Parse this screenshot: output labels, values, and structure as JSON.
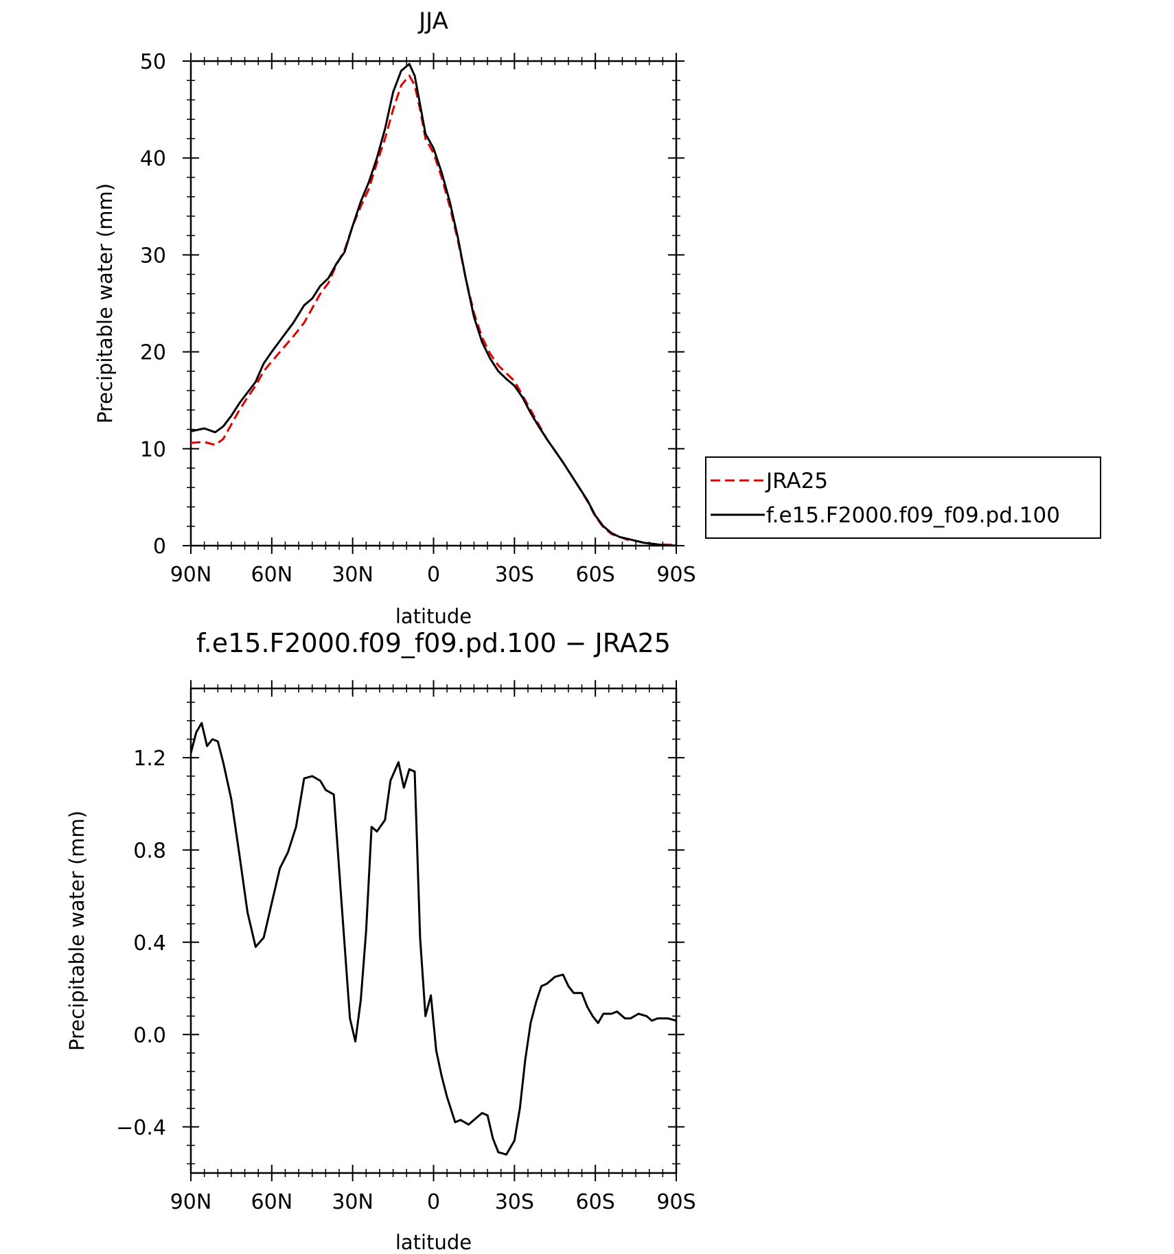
{
  "chart_data": [
    {
      "type": "line",
      "title": "JJA",
      "xlabel": "latitude",
      "ylabel": "Precipitable water (mm)",
      "xlim": [
        90,
        -90
      ],
      "ylim": [
        0,
        50
      ],
      "x_ticks": [
        90,
        60,
        30,
        0,
        -30,
        -60,
        -90
      ],
      "x_tick_labels": [
        "90N",
        "60N",
        "30N",
        "0",
        "30S",
        "60S",
        "90S"
      ],
      "y_ticks": [
        0,
        10,
        20,
        30,
        40,
        50
      ],
      "y_tick_labels": [
        "0",
        "10",
        "20",
        "30",
        "40",
        "50"
      ],
      "legend": {
        "position": "right",
        "entries": [
          "JRA25",
          "f.e15.F2000.f09_f09.pd.100"
        ]
      },
      "series": [
        {
          "name": "JRA25",
          "color": "#e00000",
          "dash": true,
          "x": [
            90,
            85,
            81,
            78,
            75,
            72,
            69,
            66,
            63,
            60,
            56,
            52,
            48,
            45,
            42,
            39,
            36,
            33,
            30,
            27,
            24,
            21,
            18,
            15,
            12,
            9,
            7,
            5,
            3,
            0,
            -3,
            -6,
            -9,
            -12,
            -15,
            -18,
            -21,
            -24,
            -27,
            -30,
            -33,
            -36,
            -39,
            -42,
            -45,
            -48,
            -51,
            -54,
            -57,
            -60,
            -63,
            -66,
            -69,
            -72,
            -75,
            -78,
            -81,
            -84,
            -87,
            -90
          ],
          "y": [
            10.6,
            10.7,
            10.4,
            11.0,
            12.5,
            14.0,
            15.3,
            16.5,
            18.0,
            19.0,
            20.3,
            21.6,
            23.0,
            24.5,
            26.0,
            27.1,
            29.0,
            30.5,
            33.0,
            35.0,
            36.8,
            39.5,
            42.0,
            45.0,
            47.5,
            48.5,
            47.5,
            45.0,
            42.0,
            40.5,
            38.0,
            35.0,
            31.5,
            27.5,
            24.0,
            21.5,
            19.8,
            18.6,
            17.8,
            17.0,
            15.5,
            14.0,
            12.5,
            11.0,
            9.8,
            8.6,
            7.3,
            6.0,
            4.6,
            3.0,
            1.9,
            1.2,
            0.9,
            0.6,
            0.5,
            0.3,
            0.2,
            0.1,
            0.1,
            0.1
          ]
        },
        {
          "name": "f.e15.F2000.f09_f09.pd.100",
          "color": "#000000",
          "dash": false,
          "x": [
            90,
            85,
            81,
            78,
            75,
            72,
            69,
            66,
            63,
            60,
            56,
            52,
            48,
            45,
            42,
            39,
            36,
            33,
            30,
            27,
            24,
            21,
            18,
            15,
            12,
            9,
            7,
            5,
            3,
            0,
            -3,
            -6,
            -9,
            -12,
            -15,
            -18,
            -21,
            -24,
            -27,
            -30,
            -33,
            -36,
            -39,
            -42,
            -45,
            -48,
            -51,
            -54,
            -57,
            -60,
            -63,
            -66,
            -69,
            -72,
            -75,
            -78,
            -81,
            -84,
            -87,
            -90
          ],
          "y": [
            11.8,
            12.1,
            11.7,
            12.3,
            13.4,
            14.7,
            15.8,
            16.9,
            18.8,
            20.0,
            21.5,
            23.0,
            24.8,
            25.5,
            26.8,
            27.6,
            29.1,
            30.3,
            33.0,
            35.5,
            37.5,
            40.0,
            43.0,
            46.8,
            49.0,
            49.7,
            48.5,
            45.5,
            42.5,
            41.0,
            38.5,
            35.5,
            31.8,
            27.5,
            23.6,
            21.0,
            19.3,
            18.0,
            17.2,
            16.5,
            15.3,
            13.7,
            12.3,
            11.0,
            9.8,
            8.6,
            7.3,
            6.0,
            4.7,
            3.1,
            2.0,
            1.3,
            0.9,
            0.7,
            0.5,
            0.3,
            0.2,
            0.1,
            0.05,
            0.0
          ]
        }
      ]
    },
    {
      "type": "line",
      "title": "f.e15.F2000.f09_f09.pd.100 − JRA25",
      "xlabel": "latitude",
      "ylabel": "Precipitable water (mm)",
      "xlim": [
        90,
        -90
      ],
      "ylim": [
        -0.6,
        1.5
      ],
      "x_ticks": [
        90,
        60,
        30,
        0,
        -30,
        -60,
        -90
      ],
      "x_tick_labels": [
        "90N",
        "60N",
        "30N",
        "0",
        "30S",
        "60S",
        "90S"
      ],
      "y_ticks": [
        -0.4,
        0.0,
        0.4,
        0.8,
        1.2
      ],
      "y_tick_labels": [
        "−0.4",
        "0.0",
        "0.4",
        "0.8",
        "1.2"
      ],
      "series": [
        {
          "color": "#000000",
          "dash": false,
          "x": [
            90,
            88,
            86,
            84,
            82,
            80,
            78,
            75,
            72,
            69,
            66,
            63,
            60,
            57,
            54,
            51,
            48,
            45,
            42,
            40,
            37,
            34,
            31,
            29,
            27,
            25,
            23,
            21,
            18,
            16,
            13,
            11,
            9,
            7,
            5,
            3,
            1,
            -1,
            -3,
            -5,
            -8,
            -10,
            -13,
            -16,
            -18,
            -20,
            -22,
            -24,
            -27,
            -30,
            -32,
            -34,
            -36,
            -38,
            -40,
            -42,
            -45,
            -48,
            -50,
            -52,
            -55,
            -57,
            -59,
            -61,
            -63,
            -66,
            -68,
            -71,
            -73,
            -76,
            -79,
            -81,
            -83,
            -85,
            -87,
            -90
          ],
          "y": [
            1.22,
            1.31,
            1.35,
            1.25,
            1.28,
            1.27,
            1.18,
            1.02,
            0.78,
            0.53,
            0.38,
            0.42,
            0.57,
            0.72,
            0.79,
            0.9,
            1.11,
            1.12,
            1.1,
            1.06,
            1.04,
            0.55,
            0.07,
            -0.03,
            0.15,
            0.45,
            0.9,
            0.88,
            0.93,
            1.1,
            1.18,
            1.07,
            1.15,
            1.14,
            0.42,
            0.08,
            0.17,
            -0.07,
            -0.18,
            -0.27,
            -0.38,
            -0.37,
            -0.39,
            -0.36,
            -0.34,
            -0.35,
            -0.45,
            -0.51,
            -0.52,
            -0.46,
            -0.32,
            -0.11,
            0.05,
            0.14,
            0.21,
            0.22,
            0.25,
            0.26,
            0.21,
            0.18,
            0.18,
            0.12,
            0.08,
            0.05,
            0.09,
            0.09,
            0.1,
            0.07,
            0.07,
            0.09,
            0.08,
            0.06,
            0.07,
            0.07,
            0.07,
            0.06
          ]
        }
      ]
    }
  ]
}
